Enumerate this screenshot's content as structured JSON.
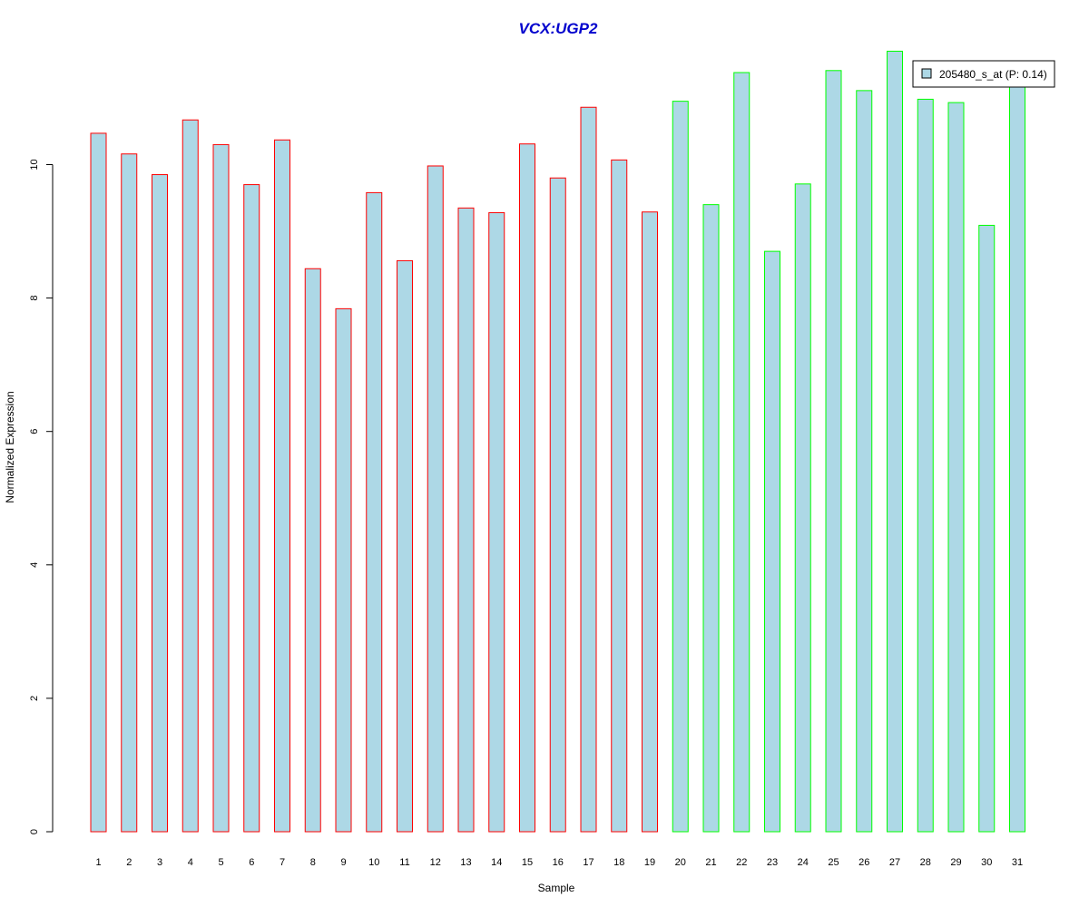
{
  "chart_data": {
    "type": "bar",
    "title": "VCX:UGP2",
    "xlabel": "Sample",
    "ylabel": "Normalized Expression",
    "ylim": [
      0,
      11.8
    ],
    "yticks": [
      0,
      2,
      4,
      6,
      8,
      10
    ],
    "grid": false,
    "legend_position": "top-right",
    "categories": [
      "1",
      "2",
      "3",
      "4",
      "5",
      "6",
      "7",
      "8",
      "9",
      "10",
      "11",
      "12",
      "13",
      "14",
      "15",
      "16",
      "17",
      "18",
      "19",
      "20",
      "21",
      "22",
      "23",
      "24",
      "25",
      "26",
      "27",
      "28",
      "29",
      "30",
      "31"
    ],
    "series": [
      {
        "name": "205480_s_at (P: 0.14)",
        "values": [
          10.47,
          10.16,
          9.85,
          10.67,
          10.3,
          9.7,
          10.37,
          8.44,
          7.84,
          9.58,
          8.56,
          9.98,
          9.35,
          9.28,
          10.31,
          9.8,
          10.86,
          10.07,
          9.29,
          10.95,
          9.4,
          11.38,
          8.7,
          9.71,
          11.41,
          11.11,
          11.7,
          10.98,
          10.93,
          9.09,
          11.17
        ]
      }
    ],
    "group": [
      "1",
      "1",
      "1",
      "1",
      "1",
      "1",
      "1",
      "1",
      "1",
      "1",
      "1",
      "1",
      "1",
      "1",
      "1",
      "1",
      "1",
      "1",
      "1",
      "2",
      "2",
      "2",
      "2",
      "2",
      "2",
      "2",
      "2",
      "2",
      "2",
      "2",
      "2"
    ],
    "colors": {
      "bar_fill": "#add8e6",
      "group_1_border": "#ff0000",
      "group_2_border": "#00ff00",
      "title": "#0000cd",
      "axis": "#000000"
    }
  }
}
